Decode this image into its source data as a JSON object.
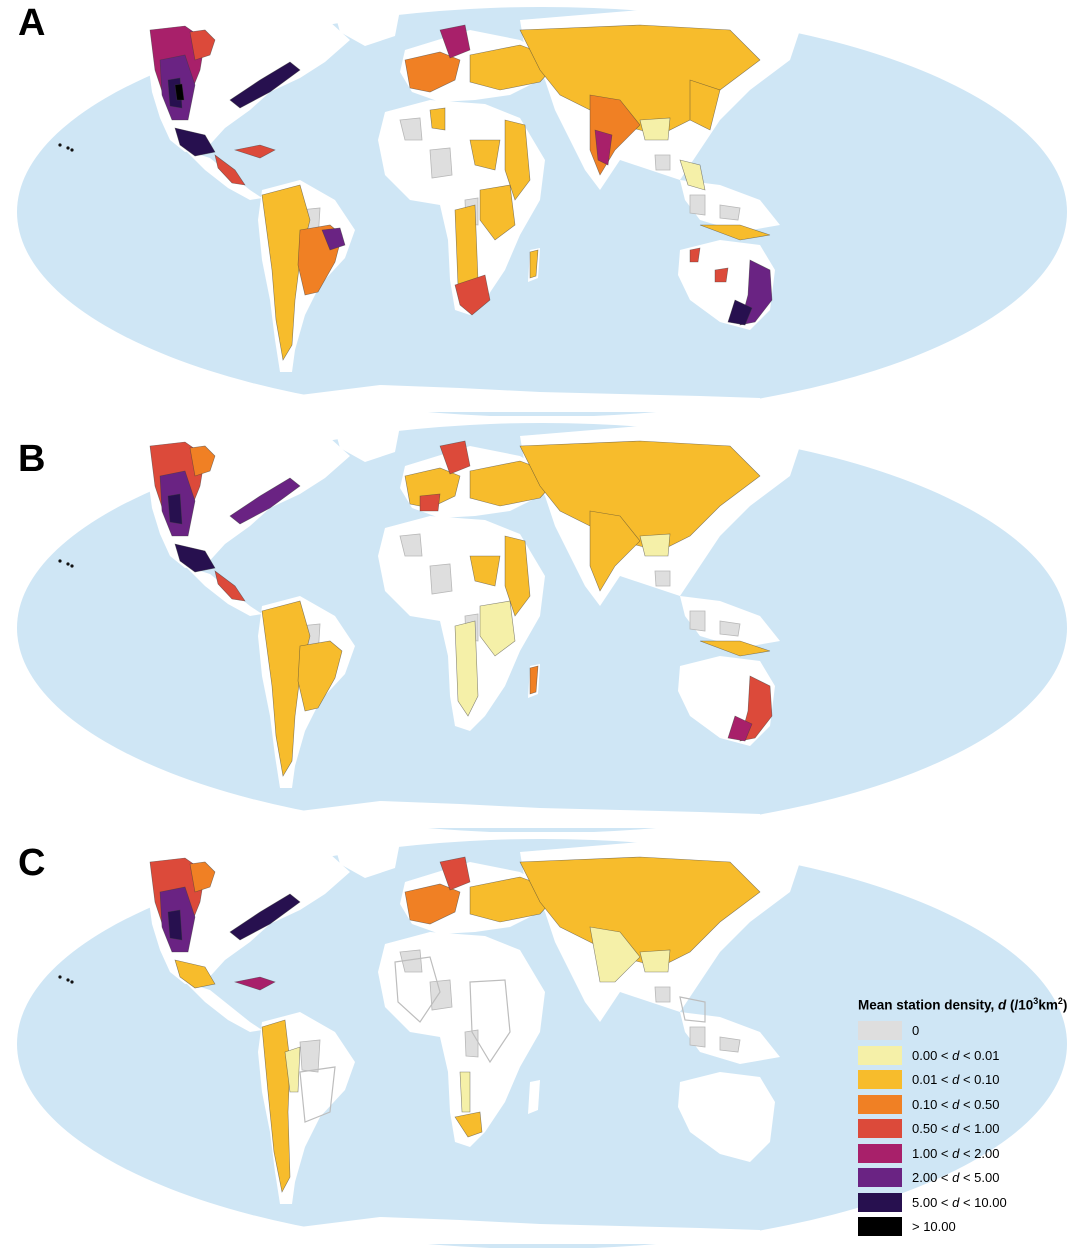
{
  "panels": [
    {
      "letter": "A"
    },
    {
      "letter": "B"
    },
    {
      "letter": "C"
    }
  ],
  "legend": {
    "title_prefix": "Mean station density, ",
    "title_var": "d",
    "title_unit_open": " (/10",
    "title_unit_sup1": "3",
    "title_unit_mid": "km",
    "title_unit_sup2": "2",
    "title_unit_close": ")",
    "items": [
      {
        "label": "0",
        "color": "#dedede"
      },
      {
        "label": "0.00 < d < 0.01",
        "color": "#f5f0a8"
      },
      {
        "label": "0.01 < d < 0.10",
        "color": "#f7bc2c"
      },
      {
        "label": "0.10 < d < 0.50",
        "color": "#f08024"
      },
      {
        "label": "0.50 < d < 1.00",
        "color": "#dc4a3a"
      },
      {
        "label": "1.00 < d < 2.00",
        "color": "#a8206a"
      },
      {
        "label": "2.00 < d < 5.00",
        "color": "#6a2383"
      },
      {
        "label": "5.00 < d < 10.00",
        "color": "#27104f"
      },
      {
        "label": "> 10.00",
        "color": "#000000"
      }
    ]
  },
  "colors": {
    "ocean": "#cfe6f5",
    "land": "#ffffff"
  }
}
